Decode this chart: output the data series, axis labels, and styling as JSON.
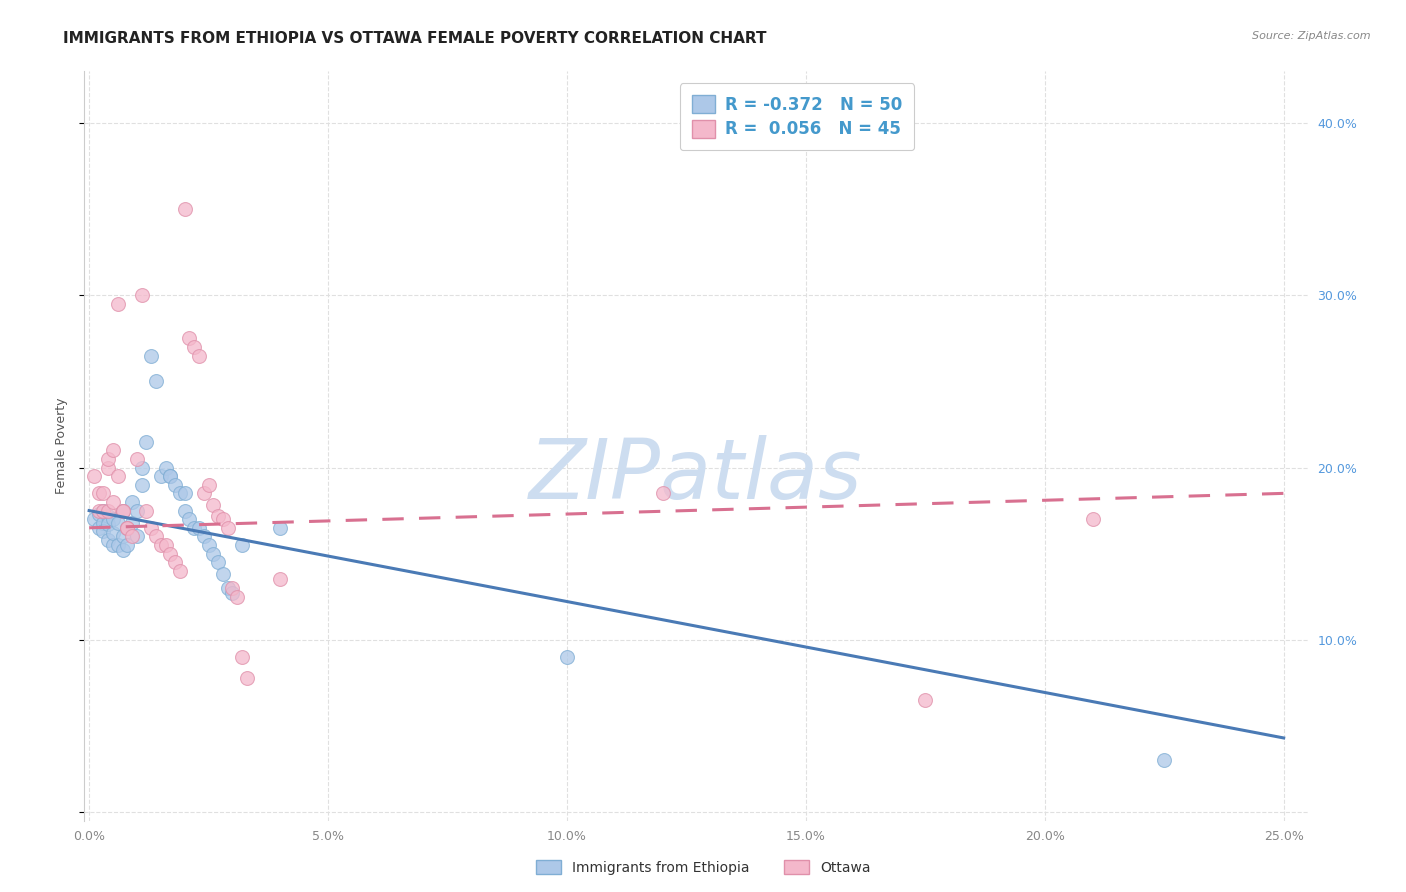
{
  "title": "IMMIGRANTS FROM ETHIOPIA VS OTTAWA FEMALE POVERTY CORRELATION CHART",
  "source": "Source: ZipAtlas.com",
  "ylabel": "Female Poverty",
  "watermark": "ZIPatlas",
  "legend_entries": [
    {
      "label": "Immigrants from Ethiopia",
      "color": "#adc8e8",
      "R": "-0.372",
      "N": "50"
    },
    {
      "label": "Ottawa",
      "color": "#f4b8cb",
      "R": "0.056",
      "N": "45"
    }
  ],
  "blue_scatter_x": [
    0.001,
    0.002,
    0.002,
    0.003,
    0.003,
    0.003,
    0.004,
    0.004,
    0.004,
    0.005,
    0.005,
    0.005,
    0.006,
    0.006,
    0.007,
    0.007,
    0.007,
    0.008,
    0.008,
    0.009,
    0.009,
    0.01,
    0.01,
    0.011,
    0.011,
    0.012,
    0.013,
    0.014,
    0.015,
    0.016,
    0.017,
    0.017,
    0.018,
    0.019,
    0.02,
    0.02,
    0.021,
    0.022,
    0.023,
    0.024,
    0.025,
    0.026,
    0.027,
    0.028,
    0.029,
    0.03,
    0.032,
    0.04,
    0.1,
    0.225
  ],
  "blue_scatter_y": [
    0.17,
    0.173,
    0.165,
    0.168,
    0.175,
    0.163,
    0.172,
    0.158,
    0.167,
    0.17,
    0.155,
    0.162,
    0.168,
    0.155,
    0.175,
    0.16,
    0.152,
    0.165,
    0.155,
    0.18,
    0.168,
    0.175,
    0.16,
    0.2,
    0.19,
    0.215,
    0.265,
    0.25,
    0.195,
    0.2,
    0.195,
    0.195,
    0.19,
    0.185,
    0.175,
    0.185,
    0.17,
    0.165,
    0.165,
    0.16,
    0.155,
    0.15,
    0.145,
    0.138,
    0.13,
    0.127,
    0.155,
    0.165,
    0.09,
    0.03
  ],
  "pink_scatter_x": [
    0.001,
    0.002,
    0.002,
    0.003,
    0.003,
    0.004,
    0.004,
    0.004,
    0.005,
    0.005,
    0.006,
    0.006,
    0.007,
    0.007,
    0.008,
    0.008,
    0.009,
    0.01,
    0.011,
    0.012,
    0.013,
    0.014,
    0.015,
    0.016,
    0.017,
    0.018,
    0.019,
    0.02,
    0.021,
    0.022,
    0.023,
    0.024,
    0.025,
    0.026,
    0.027,
    0.028,
    0.029,
    0.03,
    0.031,
    0.032,
    0.033,
    0.04,
    0.12,
    0.175,
    0.21
  ],
  "pink_scatter_y": [
    0.195,
    0.185,
    0.175,
    0.185,
    0.175,
    0.2,
    0.205,
    0.175,
    0.21,
    0.18,
    0.295,
    0.195,
    0.175,
    0.175,
    0.165,
    0.165,
    0.16,
    0.205,
    0.3,
    0.175,
    0.165,
    0.16,
    0.155,
    0.155,
    0.15,
    0.145,
    0.14,
    0.35,
    0.275,
    0.27,
    0.265,
    0.185,
    0.19,
    0.178,
    0.172,
    0.17,
    0.165,
    0.13,
    0.125,
    0.09,
    0.078,
    0.135,
    0.185,
    0.065,
    0.17
  ],
  "blue_line_x": [
    0.0,
    0.25
  ],
  "blue_line_y": [
    0.175,
    0.043
  ],
  "pink_line_x": [
    0.0,
    0.25
  ],
  "pink_line_y": [
    0.165,
    0.185
  ],
  "xlim": [
    -0.001,
    0.255
  ],
  "ylim": [
    -0.005,
    0.43
  ],
  "xticks": [
    0.0,
    0.05,
    0.1,
    0.15,
    0.2,
    0.25
  ],
  "yticks": [
    0.0,
    0.1,
    0.2,
    0.3,
    0.4
  ],
  "ytick_labels_right": [
    "",
    "10.0%",
    "20.0%",
    "30.0%",
    "40.0%"
  ],
  "scatter_size": 100,
  "scatter_alpha": 0.75,
  "blue_color": "#adc8e8",
  "blue_edge_color": "#80aed4",
  "pink_color": "#f4b8cb",
  "pink_edge_color": "#e090aa",
  "blue_line_color": "#4a7ab5",
  "pink_line_color": "#d87090",
  "grid_color": "#e0e0e0",
  "title_fontsize": 11,
  "label_fontsize": 9,
  "tick_fontsize": 9,
  "right_tick_color": "#5599dd",
  "bottom_tick_color": "#888888",
  "background_color": "#ffffff",
  "watermark_color": "#cdddf0",
  "watermark_fontsize": 60,
  "legend_r_color": "#4499cc",
  "legend_n_color": "#4499cc"
}
